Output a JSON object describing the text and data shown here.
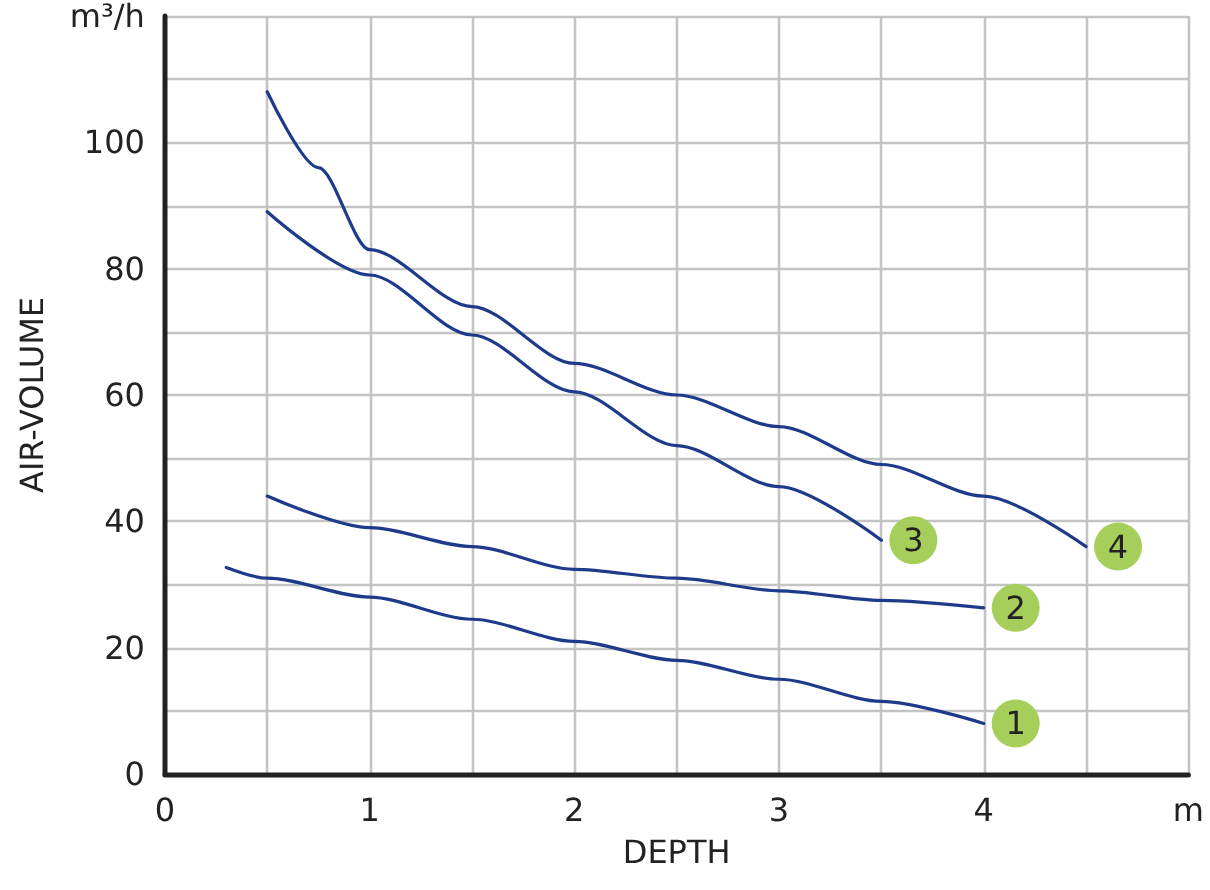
{
  "chart_data": {
    "type": "line",
    "xlabel": "DEPTH",
    "ylabel": "AIR-VOLUME",
    "xlim": [
      0,
      5
    ],
    "ylim": [
      0,
      120
    ],
    "xticks": [
      0,
      {
        "value": 0.5,
        "label": null
      },
      1,
      {
        "value": 1.5,
        "label": null
      },
      2,
      {
        "value": 2.5,
        "label": null
      },
      3,
      {
        "value": 3.5,
        "label": null
      },
      4,
      {
        "value": 4.5,
        "label": null
      },
      {
        "value": 5,
        "label": "m"
      }
    ],
    "yticks": [
      0,
      {
        "value": 10,
        "label": null
      },
      20,
      {
        "value": 30,
        "label": null
      },
      40,
      {
        "value": 50,
        "label": null
      },
      60,
      {
        "value": 70,
        "label": null
      },
      80,
      {
        "value": 90,
        "label": null
      },
      100,
      {
        "value": 110,
        "label": null
      },
      {
        "value": 120,
        "label": "m³/h"
      }
    ],
    "grid": true,
    "marker": "none",
    "line_style": "solid",
    "legend": false,
    "series": [
      {
        "name": "1",
        "color": "#1e3a8a",
        "x": [
          0.3,
          0.5,
          1,
          1.5,
          2,
          2.5,
          3,
          3.5,
          4
        ],
        "values": [
          32.7,
          31,
          28,
          24.5,
          21,
          18,
          15,
          11.5,
          8
        ]
      },
      {
        "name": "2",
        "color": "#1e3a8a",
        "x": [
          0.5,
          1,
          1.5,
          2,
          2.5,
          3,
          3.5,
          4
        ],
        "values": [
          44,
          39,
          36,
          32.4,
          31,
          29,
          27.5,
          26.3
        ]
      },
      {
        "name": "3",
        "color": "#1e3a8a",
        "x": [
          0.5,
          1,
          1.5,
          2,
          2.5,
          3,
          3.5
        ],
        "values": [
          89,
          79,
          69.5,
          60.5,
          52,
          45.5,
          37
        ]
      },
      {
        "name": "4",
        "color": "#1e3a8a",
        "x": [
          0.5,
          0.75,
          1,
          1.5,
          2,
          2.5,
          3,
          3.5,
          4,
          4.5
        ],
        "values": [
          108,
          96,
          83,
          74,
          65,
          60,
          55,
          49,
          44,
          36
        ]
      }
    ]
  }
}
